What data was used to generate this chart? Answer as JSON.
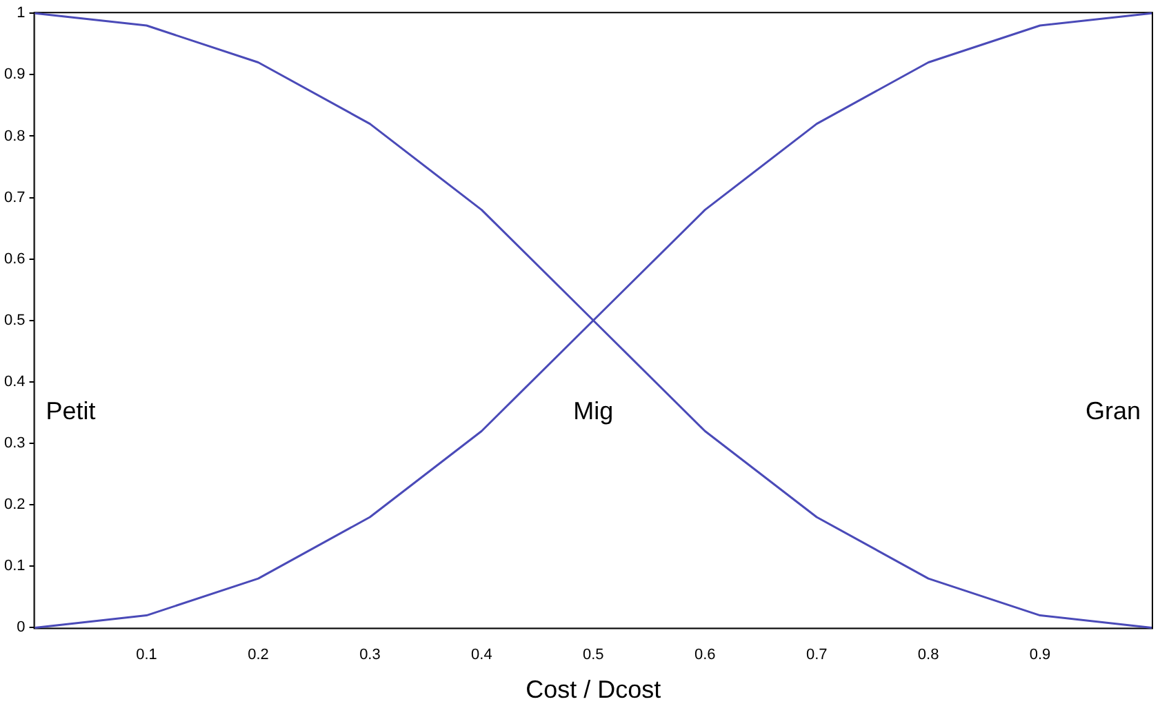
{
  "chart_data": {
    "type": "line",
    "xlabel": "Cost / Dcost",
    "x": [
      0,
      0.1,
      0.2,
      0.3,
      0.4,
      0.5,
      0.6,
      0.7,
      0.8,
      0.9,
      1
    ],
    "series": [
      {
        "color": "#4a4ab8",
        "values": [
          1,
          0.98,
          0.92,
          0.82,
          0.68,
          0.5,
          0.32,
          0.18,
          0.08,
          0.02,
          0
        ]
      },
      {
        "color": "#4a4ab8",
        "values": [
          0,
          0.02,
          0.08,
          0.18,
          0.32,
          0.5,
          0.68,
          0.82,
          0.92,
          0.98,
          1
        ]
      }
    ],
    "xlim": [
      0,
      1
    ],
    "xticks": [
      0.1,
      0.2,
      0.3,
      0.4,
      0.5,
      0.6,
      0.7,
      0.8,
      0.9
    ],
    "ylim": [
      0,
      1
    ],
    "yticks": [
      0,
      0.1,
      0.2,
      0.3,
      0.4,
      0.5,
      0.6,
      0.7,
      0.8,
      0.9,
      1
    ],
    "annotations": [
      "Petit",
      "Mig",
      "Gran"
    ],
    "grid": false,
    "legend": false,
    "marker": "none",
    "line_style": "solid"
  }
}
